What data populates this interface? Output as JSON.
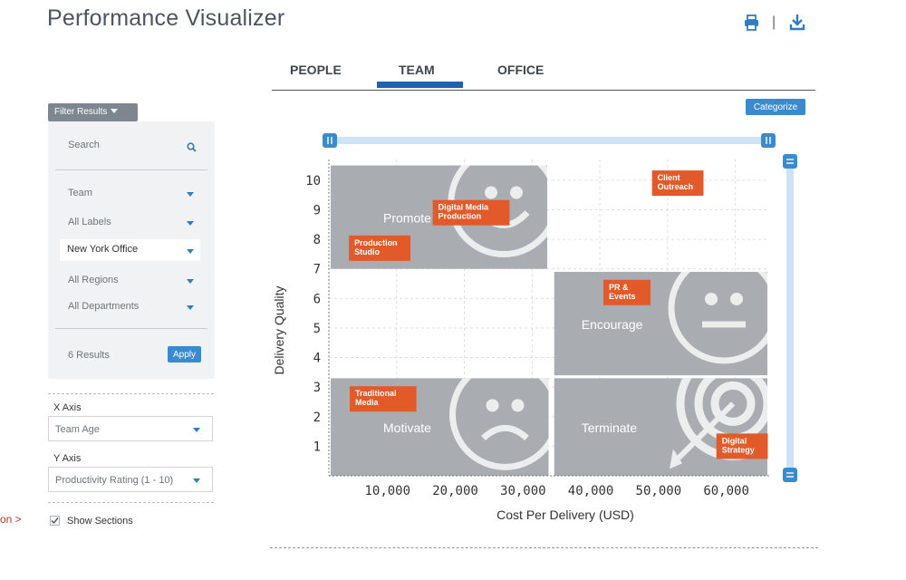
{
  "app": {
    "title": "Performance Visualizer"
  },
  "toolbar": {
    "print_icon": "printer-icon",
    "download_icon": "download-icon",
    "separator": "|"
  },
  "side_note": "on >",
  "filter": {
    "toggle_label": "Filter Results",
    "search_placeholder": "Search",
    "dropdowns": [
      "Team",
      "All Labels",
      "New York Office",
      "All Regions",
      "All Departments"
    ],
    "selected_dropdown": "New York Office",
    "results_text": "6 Results",
    "apply_label": "Apply"
  },
  "axes_config": {
    "x_label": "X Axis",
    "x_value": "Team Age",
    "y_label": "Y Axis",
    "y_value": "Productivity Rating (1 - 10)"
  },
  "show_sections": {
    "label": "Show Sections",
    "checked": true
  },
  "tabs": [
    {
      "label": "PEOPLE",
      "active": false
    },
    {
      "label": "TEAM",
      "active": true
    },
    {
      "label": "OFFICE",
      "active": false
    }
  ],
  "categorize_label": "Categorize",
  "colors": {
    "accent": "#3a8ad0",
    "tab_active": "#1f63b0",
    "section": "#a9adb1",
    "tag": "#e25a2a",
    "slider": "#cfe3f6"
  },
  "chart_data": {
    "type": "scatter",
    "title": "",
    "xlabel": "Cost Per Delivery (USD)",
    "ylabel": "Delivery Quality",
    "xlim": [
      0,
      65000
    ],
    "ylim": [
      0,
      10.7
    ],
    "x_ticks": [
      10000,
      20000,
      30000,
      40000,
      50000,
      60000
    ],
    "x_tick_labels": [
      "10,000",
      "20,000",
      "30,000",
      "40,000",
      "50,000",
      "60,000"
    ],
    "y_ticks": [
      1,
      2,
      3,
      4,
      5,
      6,
      7,
      8,
      9,
      10
    ],
    "grid": true,
    "sections": [
      {
        "name": "Promote",
        "icon": "smiley-face-icon",
        "x": [
          0,
          32500
        ],
        "y": [
          7,
          10.5
        ]
      },
      {
        "name": "Encourage",
        "icon": "neutral-face-icon",
        "x": [
          33000,
          65000
        ],
        "y": [
          3.4,
          6.9
        ]
      },
      {
        "name": "Motivate",
        "icon": "sad-face-icon",
        "x": [
          0,
          32700
        ],
        "y": [
          0,
          3.3
        ]
      },
      {
        "name": "Terminate",
        "icon": "target-icon",
        "x": [
          33000,
          65000
        ],
        "y": [
          0,
          3.3
        ]
      }
    ],
    "points": [
      {
        "label": "Client Outreach",
        "x": 51500,
        "y": 9.9
      },
      {
        "label": "Digital Media Production",
        "x": 21000,
        "y": 8.9
      },
      {
        "label": "Production Studio",
        "x": 7500,
        "y": 7.7
      },
      {
        "label": "PR & Events",
        "x": 44000,
        "y": 6.2
      },
      {
        "label": "Traditional Media",
        "x": 8000,
        "y": 2.6
      },
      {
        "label": "Digital Strategy",
        "x": 61000,
        "y": 1.0
      }
    ]
  }
}
